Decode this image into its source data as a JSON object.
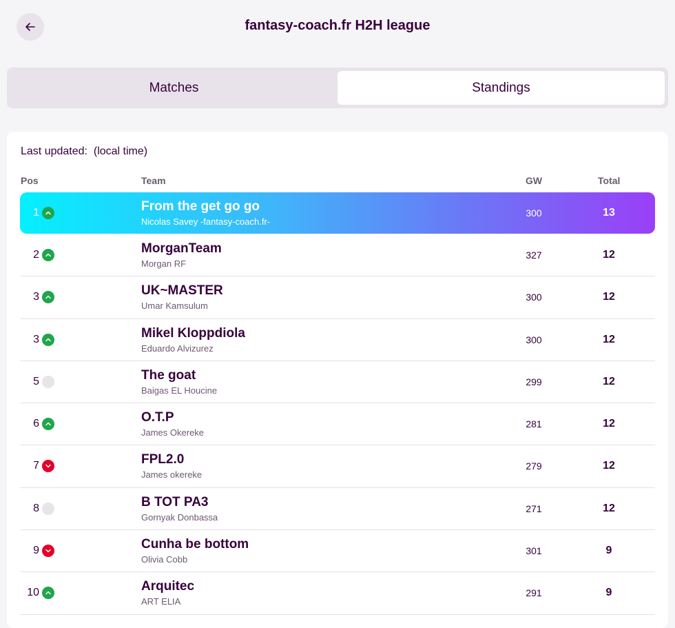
{
  "header": {
    "title": "fantasy-coach.fr H2H league",
    "back_icon": "arrow-left-icon"
  },
  "tabs": [
    {
      "label": "Matches",
      "active": false
    },
    {
      "label": "Standings",
      "active": true
    }
  ],
  "standings": {
    "last_updated_label": "Last updated:",
    "last_updated_value": "(local time)",
    "columns": {
      "pos": "Pos",
      "team": "Team",
      "gw": "GW",
      "total": "Total"
    },
    "rows": [
      {
        "pos": "1",
        "movement": "up",
        "team": "From the get go go",
        "manager": "Nicolas Savey -fantasy-coach.fr-",
        "gw": "300",
        "total": "13",
        "highlight": true
      },
      {
        "pos": "2",
        "movement": "up",
        "team": "MorganTeam",
        "manager": "Morgan RF",
        "gw": "327",
        "total": "12"
      },
      {
        "pos": "3",
        "movement": "up",
        "team": "UK~MASTER",
        "manager": "Umar Kamsulum",
        "gw": "300",
        "total": "12"
      },
      {
        "pos": "3",
        "movement": "up",
        "team": "Mikel Kloppdiola",
        "manager": "Eduardo Alvizurez",
        "gw": "300",
        "total": "12"
      },
      {
        "pos": "5",
        "movement": "same",
        "team": "The goat",
        "manager": "Baigas EL Houcine",
        "gw": "299",
        "total": "12"
      },
      {
        "pos": "6",
        "movement": "up",
        "team": "O.T.P",
        "manager": "James Okereke",
        "gw": "281",
        "total": "12"
      },
      {
        "pos": "7",
        "movement": "down",
        "team": "FPL2.0",
        "manager": "James okereke",
        "gw": "279",
        "total": "12"
      },
      {
        "pos": "8",
        "movement": "same",
        "team": "B TOT PA3",
        "manager": "Gornyak Donbassa",
        "gw": "271",
        "total": "12"
      },
      {
        "pos": "9",
        "movement": "down",
        "team": "Cunha be bottom",
        "manager": "Olivia Cobb",
        "gw": "301",
        "total": "9"
      },
      {
        "pos": "10",
        "movement": "up",
        "team": "Arquitec",
        "manager": "ART ELIA",
        "gw": "291",
        "total": "9"
      }
    ]
  },
  "colors": {
    "primary": "#37003c",
    "up": "#1fa64b",
    "down": "#e3002c",
    "highlight_start": "#05f0ff",
    "highlight_end": "#9a3ff7"
  }
}
